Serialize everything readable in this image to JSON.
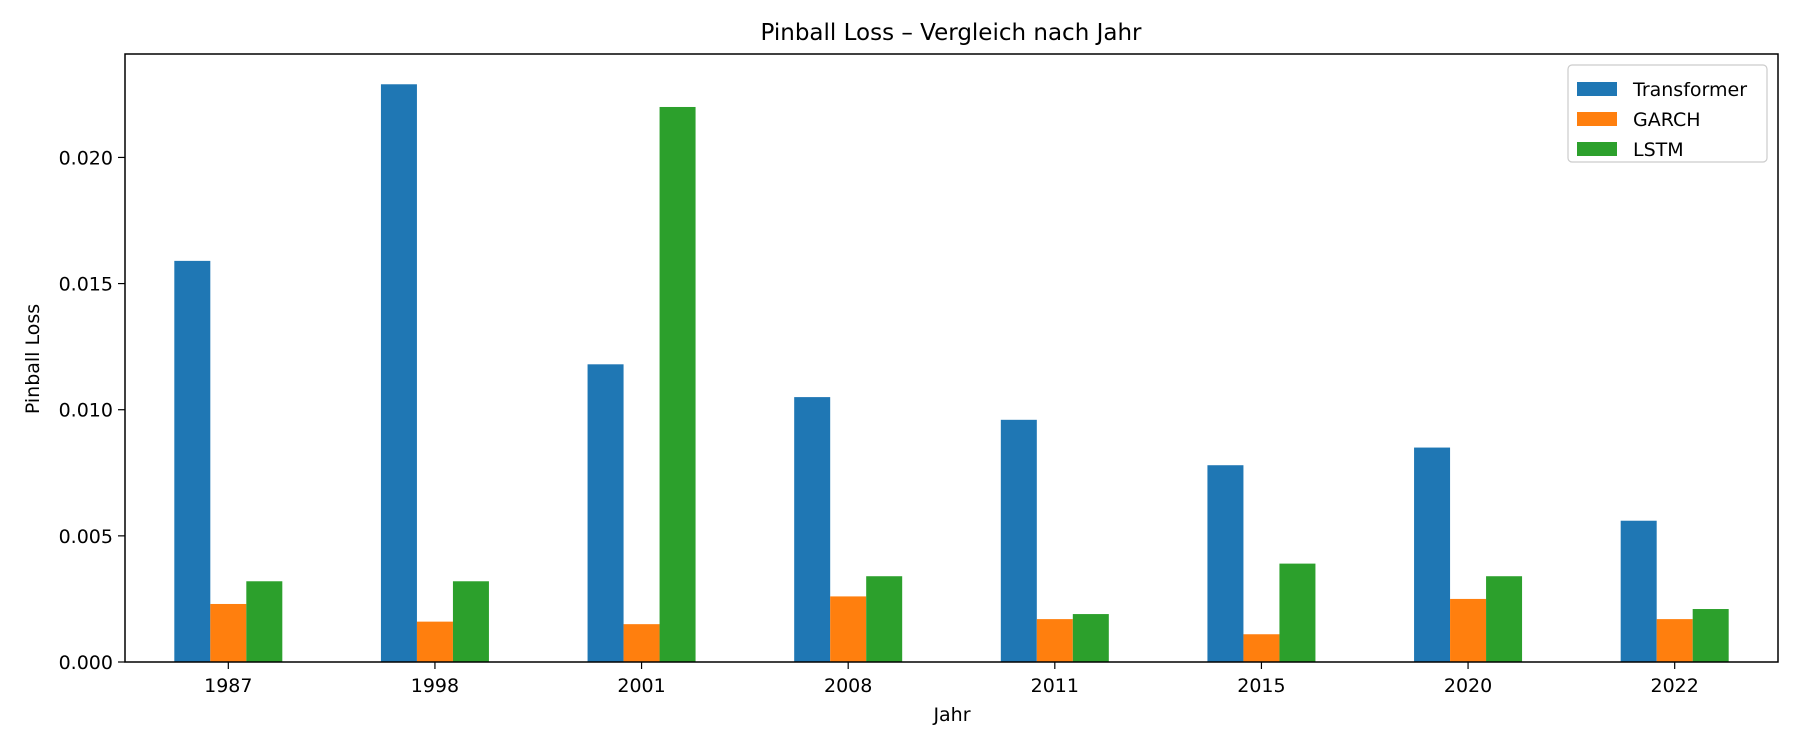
{
  "chart_data": {
    "type": "bar",
    "title": "Pinball Loss – Vergleich nach Jahr",
    "xlabel": "Jahr",
    "ylabel": "Pinball Loss",
    "categories": [
      "1987",
      "1998",
      "2001",
      "2008",
      "2011",
      "2015",
      "2020",
      "2022"
    ],
    "ylim": [
      0,
      0.0241
    ],
    "yticks": [
      "0.000",
      "0.005",
      "0.010",
      "0.015",
      "0.020"
    ],
    "legend_position": "top-right",
    "grid": false,
    "series": [
      {
        "name": "Transformer",
        "color": "#1f77b4",
        "values": [
          0.0159,
          0.0229,
          0.0118,
          0.0105,
          0.0096,
          0.0078,
          0.0085,
          0.0056
        ]
      },
      {
        "name": "GARCH",
        "color": "#ff7f0e",
        "values": [
          0.0023,
          0.0016,
          0.0015,
          0.0026,
          0.0017,
          0.0011,
          0.0025,
          0.0017
        ]
      },
      {
        "name": "LSTM",
        "color": "#2ca02c",
        "values": [
          0.0032,
          0.0032,
          0.022,
          0.0034,
          0.0019,
          0.0039,
          0.0034,
          0.0021
        ]
      }
    ]
  }
}
